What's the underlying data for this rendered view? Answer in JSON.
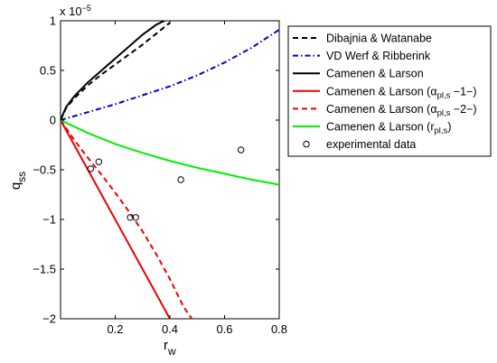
{
  "chart_data": {
    "type": "line",
    "xlabel": "r",
    "xlabel_sub": "w",
    "ylabel": "q",
    "ylabel_sub": "ss",
    "y_exponent": "x 10",
    "y_exponent_power": "−5",
    "xlim": [
      0,
      0.8
    ],
    "ylim": [
      -2,
      1
    ],
    "x_ticks": [
      {
        "value": 0.2,
        "label": "0.2"
      },
      {
        "value": 0.4,
        "label": "0.4"
      },
      {
        "value": 0.6,
        "label": "0.6"
      },
      {
        "value": 0.8,
        "label": "0.8"
      }
    ],
    "y_ticks": [
      {
        "value": 1,
        "label": "1"
      },
      {
        "value": 0.5,
        "label": "0.5"
      },
      {
        "value": 0,
        "label": "0"
      },
      {
        "value": -0.5,
        "label": "−0.5"
      },
      {
        "value": -1,
        "label": "−1"
      },
      {
        "value": -1.5,
        "label": "−1.5"
      },
      {
        "value": -2,
        "label": "−2"
      }
    ],
    "grid": false,
    "legend_position": "outside-right",
    "series": [
      {
        "name": "Dibajnia & Watanabe",
        "name_parts": [
          {
            "t": "Dibajnia & Watanabe"
          }
        ],
        "style": "dashed",
        "color": "#000000",
        "x": [
          0,
          0.02,
          0.05,
          0.1,
          0.15,
          0.2,
          0.25,
          0.3,
          0.35,
          0.4
        ],
        "y": [
          0,
          0.12,
          0.22,
          0.35,
          0.46,
          0.56,
          0.66,
          0.76,
          0.87,
          0.98
        ]
      },
      {
        "name": "VD Werf & Ribberink",
        "name_parts": [
          {
            "t": "VD Werf & Ribberink"
          }
        ],
        "style": "dashdot",
        "color": "#0000cc",
        "x": [
          0,
          0.1,
          0.2,
          0.3,
          0.4,
          0.5,
          0.6,
          0.7,
          0.8
        ],
        "y": [
          0,
          0.08,
          0.16,
          0.25,
          0.34,
          0.45,
          0.58,
          0.73,
          0.91
        ]
      },
      {
        "name": "Camenen & Larson",
        "name_parts": [
          {
            "t": "Camenen & Larson"
          }
        ],
        "style": "solid",
        "color": "#000000",
        "x": [
          0,
          0.02,
          0.05,
          0.1,
          0.15,
          0.2,
          0.25,
          0.3,
          0.35,
          0.38
        ],
        "y": [
          0,
          0.13,
          0.24,
          0.38,
          0.5,
          0.62,
          0.74,
          0.86,
          0.96,
          1.0
        ]
      },
      {
        "name": "Camenen & Larson (αpl,s −1−)",
        "name_parts": [
          {
            "t": "Camenen & Larson (α"
          },
          {
            "t": "pl,s",
            "sub": true
          },
          {
            "t": " −1−)"
          }
        ],
        "style": "solid",
        "color": "#ee0000",
        "x": [
          0,
          0.1,
          0.2,
          0.3,
          0.4
        ],
        "y": [
          0,
          -0.5,
          -1.0,
          -1.5,
          -2.0
        ]
      },
      {
        "name": "Camenen & Larson (αpl,s −2−)",
        "name_parts": [
          {
            "t": "Camenen & Larson (α"
          },
          {
            "t": "pl,s",
            "sub": true
          },
          {
            "t": " −2−)"
          }
        ],
        "style": "dashed",
        "color": "#ee0000",
        "x": [
          0,
          0.05,
          0.1,
          0.15,
          0.2,
          0.25,
          0.3,
          0.35,
          0.4,
          0.45,
          0.48
        ],
        "y": [
          0,
          -0.2,
          -0.38,
          -0.55,
          -0.73,
          -0.92,
          -1.12,
          -1.35,
          -1.6,
          -1.88,
          -2.0
        ]
      },
      {
        "name": "Camenen & Larson (rpl,s)",
        "name_parts": [
          {
            "t": "Camenen & Larson (r"
          },
          {
            "t": "pl,s",
            "sub": true
          },
          {
            "t": ")"
          }
        ],
        "style": "solid",
        "color": "#00ee00",
        "x": [
          0,
          0.1,
          0.2,
          0.3,
          0.4,
          0.5,
          0.6,
          0.7,
          0.8
        ],
        "y": [
          0,
          -0.13,
          -0.24,
          -0.33,
          -0.41,
          -0.48,
          -0.54,
          -0.6,
          -0.65
        ]
      }
    ],
    "scatter": {
      "name": "experimental data",
      "name_parts": [
        {
          "t": "experimental data"
        }
      ],
      "color": "#000000",
      "x": [
        0.11,
        0.14,
        0.255,
        0.275,
        0.44,
        0.66
      ],
      "y": [
        -0.49,
        -0.42,
        -0.98,
        -0.98,
        -0.6,
        -0.3
      ]
    }
  }
}
